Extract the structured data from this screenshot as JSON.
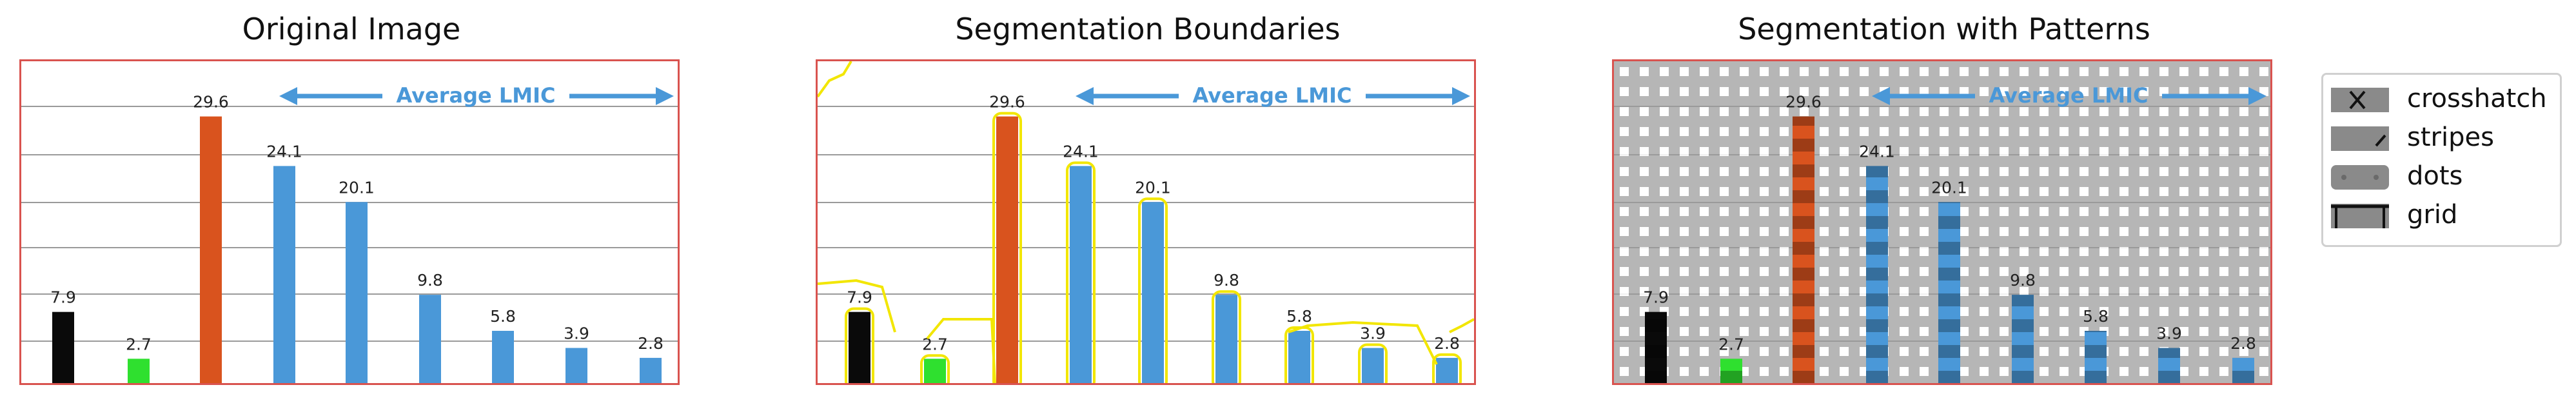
{
  "titles": [
    "Original Image",
    "Segmentation Boundaries",
    "Segmentation with Patterns"
  ],
  "chart_data": {
    "type": "bar",
    "categories": [
      "",
      "",
      "",
      "",
      "",
      "",
      "",
      "",
      ""
    ],
    "values": [
      7.9,
      2.7,
      29.6,
      24.1,
      20.1,
      9.8,
      5.8,
      3.9,
      2.8
    ],
    "value_labels": [
      "7.9",
      "2.7",
      "29.6",
      "24.1",
      "20.1",
      "9.8",
      "5.8",
      "3.9",
      "2.8"
    ],
    "bar_colors": [
      "#0a0a0a",
      "#2fe02f",
      "#d9531e",
      "#4a98d8",
      "#4a98d8",
      "#4a98d8",
      "#4a98d8",
      "#4a98d8",
      "#4a98d8"
    ],
    "ylim": [
      0,
      30
    ],
    "grid": true,
    "annotation": "Average LMIC",
    "annotation_color": "#4a98d8"
  },
  "boundary_color": "#f2e600",
  "legend": {
    "placement": "right",
    "items": [
      {
        "label": "crosshatch",
        "icon": "crosshatch-swatch"
      },
      {
        "label": "stripes",
        "icon": "stripes-swatch"
      },
      {
        "label": "dots",
        "icon": "dots-swatch"
      },
      {
        "label": "grid",
        "icon": "grid-swatch"
      }
    ]
  }
}
